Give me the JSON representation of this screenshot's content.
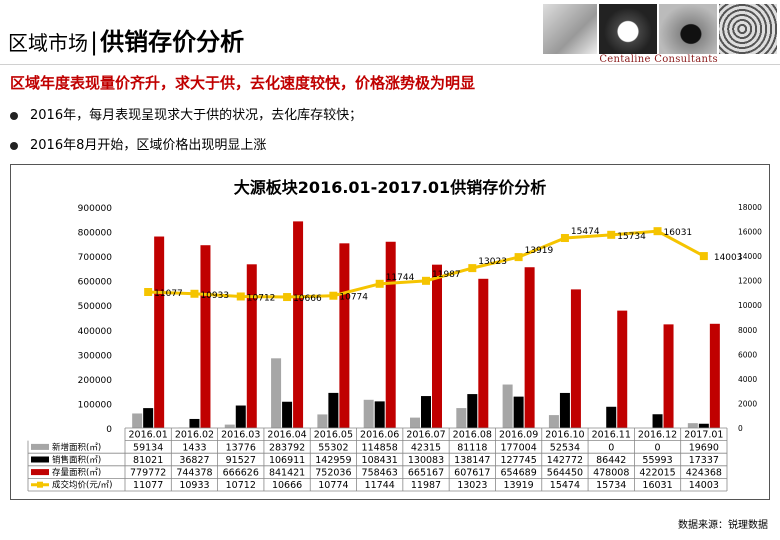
{
  "header": {
    "section_label": "区域市场",
    "page_title": "供销存价分析",
    "brand": "Centaline Consultants"
  },
  "headline": "区域年度表现量价齐升，求大于供，去化速度较快，价格涨势极为明显",
  "bullets": [
    "2016年，每月表现呈现求大于供的状况，去化库存较快；",
    "2016年8月开始，区域价格出现明显上涨"
  ],
  "chart_data": {
    "type": "bar",
    "title": "大源板块2016.01-2017.01供销存价分析",
    "categories": [
      "2016.01",
      "2016.02",
      "2016.03",
      "2016.04",
      "2016.05",
      "2016.06",
      "2016.07",
      "2016.08",
      "2016.09",
      "2016.10",
      "2016.11",
      "2016.12",
      "2017.01"
    ],
    "series": [
      {
        "name": "新增面积(㎡)",
        "kind": "bar",
        "axis": "left",
        "color": "#a6a6a6",
        "values": [
          59134,
          1433,
          13776,
          283792,
          55302,
          114858,
          42315,
          81118,
          177004,
          52534,
          0,
          0,
          19690
        ]
      },
      {
        "name": "销售面积(㎡)",
        "kind": "bar",
        "axis": "left",
        "color": "#000000",
        "values": [
          81021,
          36827,
          91527,
          106911,
          142959,
          108431,
          130083,
          138147,
          127745,
          142772,
          86442,
          55993,
          17337
        ]
      },
      {
        "name": "存量面积(㎡)",
        "kind": "bar",
        "axis": "left",
        "color": "#c00000",
        "values": [
          779772,
          744378,
          666626,
          841421,
          752036,
          758463,
          665167,
          607617,
          654689,
          564450,
          478008,
          422015,
          424368
        ]
      },
      {
        "name": "成交均价(元/㎡)",
        "kind": "line",
        "axis": "right",
        "color": "#f5c400",
        "values": [
          11077,
          10933,
          10712,
          10666,
          10774,
          11744,
          11987,
          13023,
          13919,
          15474,
          15734,
          16031,
          14003
        ]
      }
    ],
    "left_ticks": [
      "0",
      "100000",
      "200000",
      "300000",
      "400000",
      "500000",
      "600000",
      "700000",
      "800000",
      "900000"
    ],
    "right_ticks": [
      "0",
      "2000",
      "4000",
      "6000",
      "8000",
      "10000",
      "12000",
      "14000",
      "16000",
      "18000"
    ],
    "ylim_left": [
      0,
      900000
    ],
    "ylim_right": [
      0,
      18000
    ],
    "grid": false,
    "legend": "table-below"
  },
  "source": "数据来源：锐理数据"
}
